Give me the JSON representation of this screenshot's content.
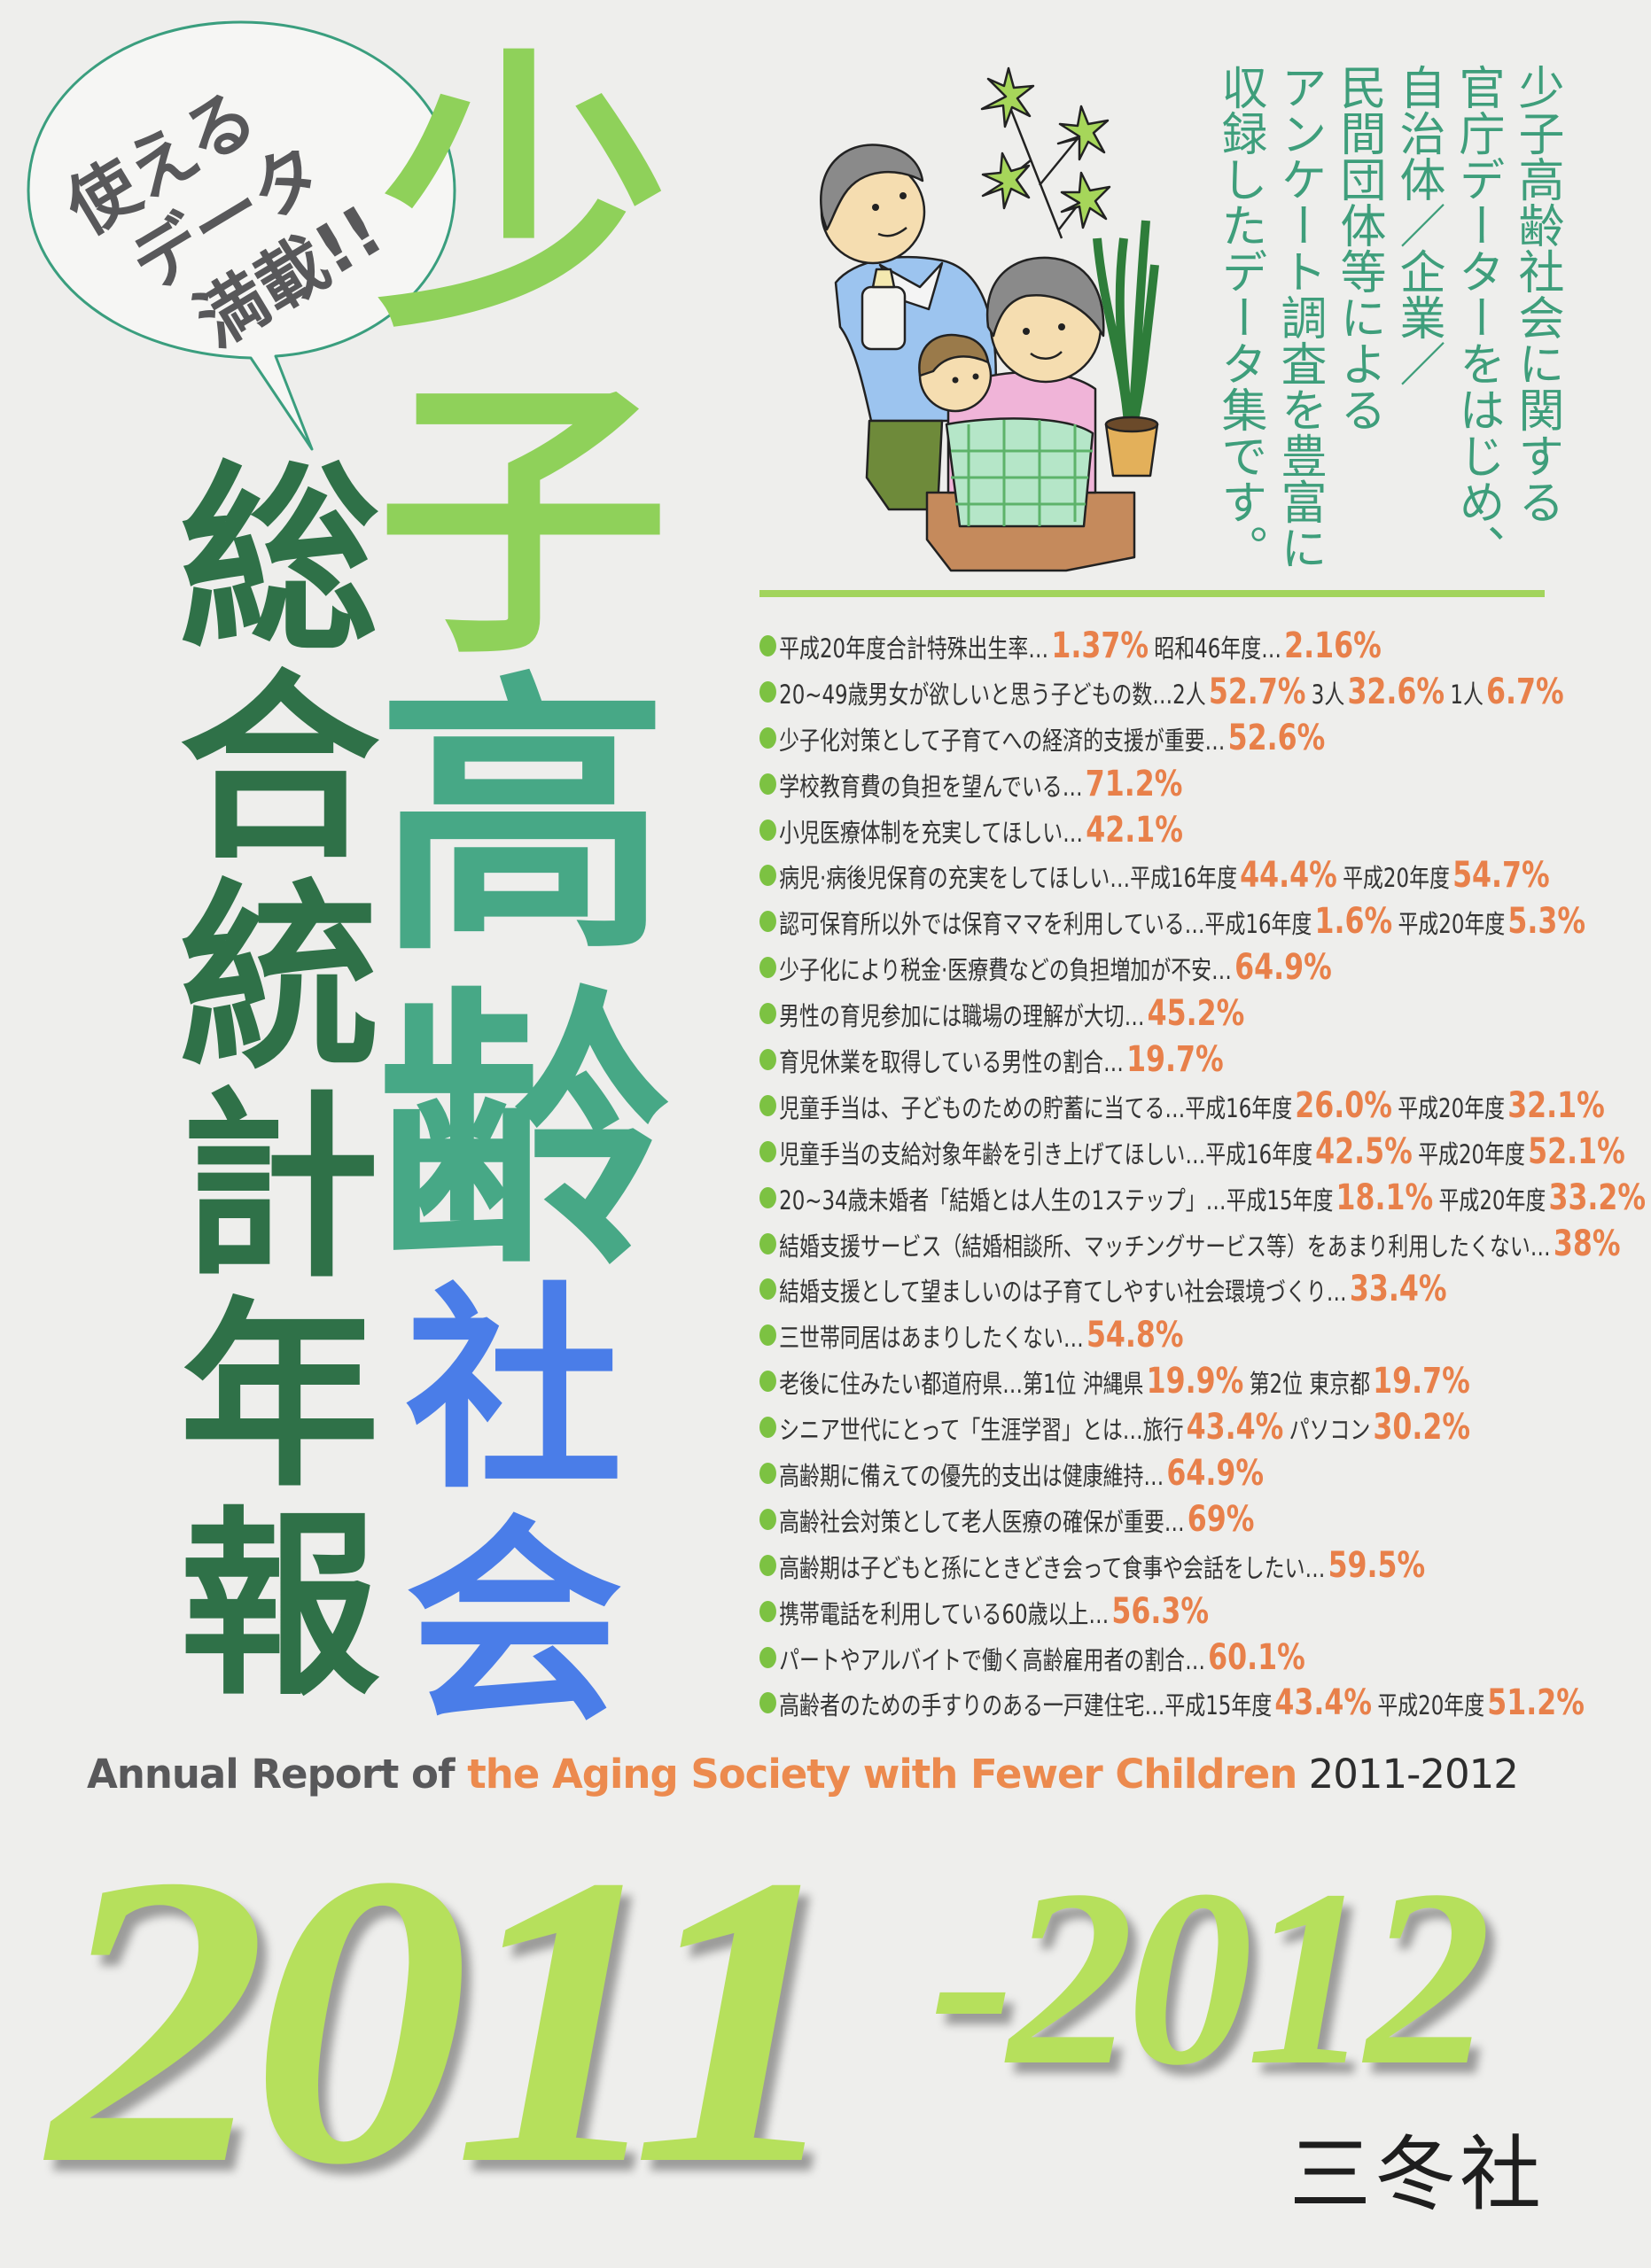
{
  "bubble": {
    "lines": [
      "使える",
      "データ",
      "満載!!"
    ],
    "stroke_color": "#3a9e7e"
  },
  "title": {
    "main_chars": [
      "少",
      "子",
      "高",
      "齢"
    ],
    "society_chars": [
      "社",
      "会"
    ],
    "subtitle": "総合統計年報",
    "colors": {
      "light_green": "#8fd15a",
      "teal_green": "#47a886",
      "blue": "#4a7de8",
      "dark_green": "#2f7148"
    }
  },
  "blurb": {
    "columns": [
      "少子高齢社会に関する",
      "官庁データーをはじめ、",
      "自治体／企業／",
      "民間団体等による",
      "アンケート調査を豊富に",
      "収録したデータ集です。"
    ],
    "color": "#3e9e7b"
  },
  "facts": {
    "bullet_color": "#7cc242",
    "value_color": "#e8804a",
    "items": [
      {
        "parts": [
          [
            "平成20年度合計特殊出生率…",
            "1.37%"
          ],
          [
            "昭和46年度…",
            "2.16%"
          ]
        ]
      },
      {
        "parts": [
          [
            "20~49歳男女が欲しいと思う子どもの数…2人",
            "52.7%"
          ],
          [
            "3人",
            "32.6%"
          ],
          [
            "1人",
            "6.7%"
          ]
        ]
      },
      {
        "parts": [
          [
            "少子化対策として子育てへの経済的支援が重要…",
            "52.6%"
          ]
        ]
      },
      {
        "parts": [
          [
            "学校教育費の負担を望んでいる…",
            "71.2%"
          ]
        ]
      },
      {
        "parts": [
          [
            "小児医療体制を充実してほしい…",
            "42.1%"
          ]
        ]
      },
      {
        "parts": [
          [
            "病児·病後児保育の充実をしてほしい…平成16年度",
            "44.4%"
          ],
          [
            "平成20年度",
            "54.7%"
          ]
        ]
      },
      {
        "parts": [
          [
            "認可保育所以外では保育ママを利用している…平成16年度",
            "1.6%"
          ],
          [
            "平成20年度",
            "5.3%"
          ]
        ]
      },
      {
        "parts": [
          [
            "少子化により税金·医療費などの負担増加が不安…",
            "64.9%"
          ]
        ]
      },
      {
        "parts": [
          [
            "男性の育児参加には職場の理解が大切…",
            "45.2%"
          ]
        ]
      },
      {
        "parts": [
          [
            "育児休業を取得している男性の割合…",
            "19.7%"
          ]
        ]
      },
      {
        "parts": [
          [
            "児童手当は、子どものための貯蓄に当てる…平成16年度",
            "26.0%"
          ],
          [
            "平成20年度",
            "32.1%"
          ]
        ]
      },
      {
        "parts": [
          [
            "児童手当の支給対象年齢を引き上げてほしい…平成16年度",
            "42.5%"
          ],
          [
            "平成20年度",
            "52.1%"
          ]
        ]
      },
      {
        "parts": [
          [
            "20~34歳未婚者「結婚とは人生の1ステップ」…平成15年度",
            "18.1%"
          ],
          [
            "平成20年度",
            "33.2%"
          ]
        ]
      },
      {
        "parts": [
          [
            "結婚支援サービス（結婚相談所、マッチングサービス等）をあまり利用したくない…",
            "38%"
          ]
        ]
      },
      {
        "parts": [
          [
            "結婚支援として望ましいのは子育てしやすい社会環境づくり…",
            "33.4%"
          ]
        ]
      },
      {
        "parts": [
          [
            "三世帯同居はあまりしたくない…",
            "54.8%"
          ]
        ]
      },
      {
        "parts": [
          [
            "老後に住みたい都道府県…第1位 沖縄県",
            "19.9%"
          ],
          [
            "第2位 東京都",
            "19.7%"
          ]
        ]
      },
      {
        "parts": [
          [
            "シニア世代にとって「生涯学習」とは…旅行",
            "43.4%"
          ],
          [
            "パソコン",
            "30.2%"
          ]
        ]
      },
      {
        "parts": [
          [
            "高齢期に備えての優先的支出は健康維持…",
            "64.9%"
          ]
        ]
      },
      {
        "parts": [
          [
            "高齢社会対策として老人医療の確保が重要…",
            "69%"
          ]
        ]
      },
      {
        "parts": [
          [
            "高齢期は子どもと孫にときどき会って食事や会話をしたい…",
            "59.5%"
          ]
        ]
      },
      {
        "parts": [
          [
            "携帯電話を利用している60歳以上…",
            "56.3%"
          ]
        ]
      },
      {
        "parts": [
          [
            "パートやアルバイトで働く高齢雇用者の割合…",
            "60.1%"
          ]
        ]
      },
      {
        "parts": [
          [
            "高齢者のための手すりのある一戸建住宅…平成15年度",
            "43.4%"
          ],
          [
            "平成20年度",
            "51.2%"
          ]
        ]
      }
    ]
  },
  "year": {
    "first": "2011",
    "second": "-2012",
    "color": "#b6e05c"
  },
  "english_title": {
    "part1": "Annual Report of ",
    "part2": "the Aging Society with Fewer Children",
    "part3": " 2011-2012",
    "accent_color": "#ec8a4e"
  },
  "publisher": "三冬社",
  "illustration": {
    "icon": "grandparents-with-baby-and-plants-illustration"
  }
}
